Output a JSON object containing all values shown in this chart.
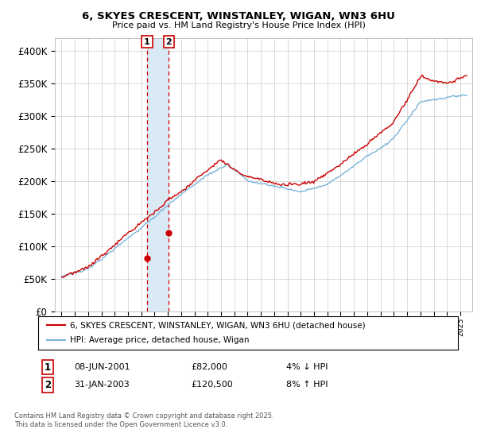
{
  "title_line1": "6, SKYES CRESCENT, WINSTANLEY, WIGAN, WN3 6HU",
  "title_line2": "Price paid vs. HM Land Registry's House Price Index (HPI)",
  "ylim": [
    0,
    420000
  ],
  "yticks": [
    0,
    50000,
    100000,
    150000,
    200000,
    250000,
    300000,
    350000,
    400000
  ],
  "sale1": {
    "date": "08-JUN-2001",
    "price": 82000,
    "label": "1",
    "pct": "4% ↓ HPI",
    "x": 2001.44
  },
  "sale2": {
    "date": "31-JAN-2003",
    "price": 120500,
    "label": "2",
    "pct": "8% ↑ HPI",
    "x": 2003.08
  },
  "hpi_color": "#7ab4d8",
  "sale_color": "#cc0000",
  "vline_color": "#cc0000",
  "shade_color": "#daeaf5",
  "legend_label1": "6, SKYES CRESCENT, WINSTANLEY, WIGAN, WN3 6HU (detached house)",
  "legend_label2": "HPI: Average price, detached house, Wigan",
  "footer": "Contains HM Land Registry data © Crown copyright and database right 2025.\nThis data is licensed under the Open Government Licence v3.0.",
  "background_color": "#ffffff",
  "grid_color": "#cccccc",
  "xmin": 1994.5,
  "xmax": 2025.9
}
